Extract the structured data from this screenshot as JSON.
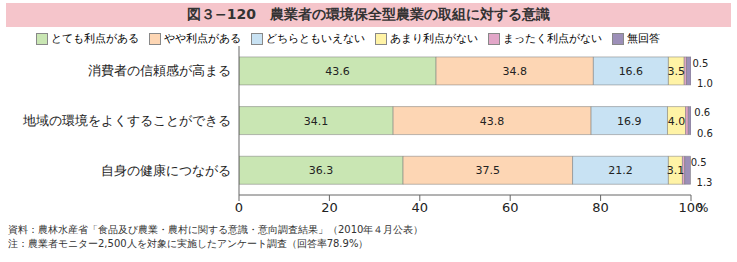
{
  "chart_data": {
    "type": "bar",
    "title": "図３−120　農業者の環境保全型農業の取組に対する意識",
    "orientation": "horizontal",
    "stacked": true,
    "data_labels": true,
    "legend": "top",
    "grid": false,
    "x_label": "%",
    "categories": [
      "消費者の信頼感が高まる",
      "地域の環境をよくすることができる",
      "自身の健康につながる"
    ],
    "xlim": [
      0,
      100
    ],
    "xticks": [
      0,
      20,
      40,
      60,
      80,
      100
    ],
    "series": [
      {
        "name": "とても利点がある",
        "color": "#c9e6b3",
        "values": [
          43.6,
          34.1,
          36.3
        ],
        "value_labels": [
          "43.6",
          "34.1",
          "36.3"
        ]
      },
      {
        "name": "やや利点がある",
        "color": "#fdd6b4",
        "values": [
          34.8,
          43.8,
          37.5
        ],
        "value_labels": [
          "34.8",
          "43.8",
          "37.5"
        ]
      },
      {
        "name": "どちらともいえない",
        "color": "#c8e2f3",
        "values": [
          16.6,
          16.9,
          21.2
        ],
        "value_labels": [
          "16.6",
          "16.9",
          "21.2"
        ]
      },
      {
        "name": "あまり利点がない",
        "color": "#fff3a6",
        "values": [
          3.5,
          4.0,
          3.1
        ],
        "value_labels": [
          "3.5",
          "4.0",
          "3.1"
        ]
      },
      {
        "name": "まったく利点がない",
        "color": "#e2a6c8",
        "values": [
          0.5,
          0.6,
          0.5
        ],
        "value_labels": [
          "0.5",
          "0.6",
          "0.5"
        ]
      },
      {
        "name": "無回答",
        "color": "#9c8fb8",
        "values": [
          1.0,
          0.6,
          1.3
        ],
        "value_labels": [
          "1.0",
          "0.6",
          "1.3"
        ]
      }
    ],
    "notes": [
      "資料：農林水産省「食品及び農業・農村に関する意識・意向調査結果」（2010年４月公表）",
      "注：農業者モニター2,500人を対象に実施したアンケート調査（回答率78.9%）"
    ]
  }
}
